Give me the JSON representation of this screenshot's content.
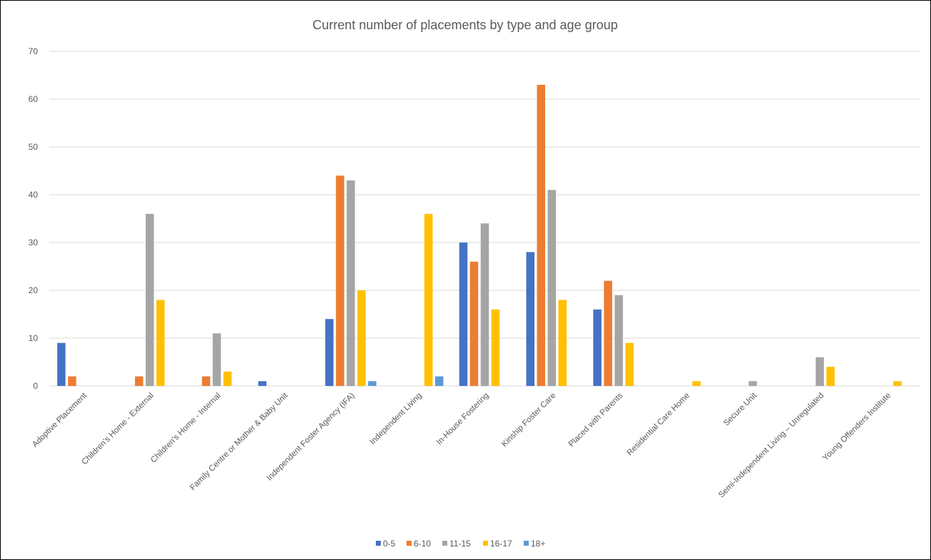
{
  "chart_data": {
    "type": "bar",
    "title": "Current number of placements by type and age group",
    "xlabel": "",
    "ylabel": "",
    "ylim": [
      0,
      70
    ],
    "yticks": [
      0,
      10,
      20,
      30,
      40,
      50,
      60,
      70
    ],
    "grid": true,
    "legend_position": "bottom",
    "categories": [
      "Adoptive Placement",
      "Children's Home - External",
      "Children's Home - Internal",
      "Family Centre or Mother & Baby Unit",
      "Independent Foster Agency (IFA)",
      "Independent Living",
      "In-House Fostering",
      "Kinship Foster Care",
      "Placed with Parents",
      "Residential Care Home",
      "Secure Unit",
      "Semi-Independent Living – Unregulated",
      "Young Offenders Institute"
    ],
    "series": [
      {
        "name": "0-5",
        "color": "#4472C4",
        "values": [
          9,
          0,
          0,
          1,
          14,
          0,
          30,
          28,
          16,
          0,
          0,
          0,
          0
        ]
      },
      {
        "name": "6-10",
        "color": "#ED7D31",
        "values": [
          2,
          2,
          2,
          0,
          44,
          0,
          26,
          63,
          22,
          0,
          0,
          0,
          0
        ]
      },
      {
        "name": "11-15",
        "color": "#A5A5A5",
        "values": [
          0,
          36,
          11,
          0,
          43,
          0,
          34,
          41,
          19,
          0,
          1,
          6,
          0
        ]
      },
      {
        "name": "16-17",
        "color": "#FFC000",
        "values": [
          0,
          18,
          3,
          0,
          20,
          36,
          16,
          18,
          9,
          1,
          0,
          4,
          1
        ]
      },
      {
        "name": "18+",
        "color": "#5B9BD5",
        "values": [
          0,
          0,
          0,
          0,
          1,
          2,
          0,
          0,
          0,
          0,
          0,
          0,
          0
        ]
      }
    ]
  }
}
